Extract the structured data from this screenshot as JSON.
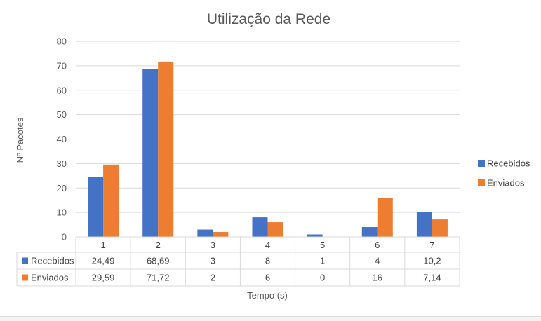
{
  "chart_data": {
    "type": "bar",
    "title": "Utilização da Rede",
    "xlabel": "Tempo (s)",
    "ylabel": "Nº Pacotes",
    "ylim": [
      0,
      80
    ],
    "yticks": [
      0,
      10,
      20,
      30,
      40,
      50,
      60,
      70,
      80
    ],
    "categories": [
      "1",
      "2",
      "3",
      "4",
      "5",
      "6",
      "7"
    ],
    "grid": true,
    "legend_position": "right",
    "series": [
      {
        "name": "Recebidos",
        "color": "#4472c4",
        "values": [
          24.49,
          68.69,
          3,
          8,
          1,
          4,
          10.2
        ],
        "labels": [
          "24,49",
          "68,69",
          "3",
          "8",
          "1",
          "4",
          "10,2"
        ]
      },
      {
        "name": "Enviados",
        "color": "#ed7d31",
        "values": [
          29.59,
          71.72,
          2,
          6,
          0,
          16,
          7.14
        ],
        "labels": [
          "29,59",
          "71,72",
          "2",
          "6",
          "0",
          "16",
          "7,14"
        ]
      }
    ]
  }
}
